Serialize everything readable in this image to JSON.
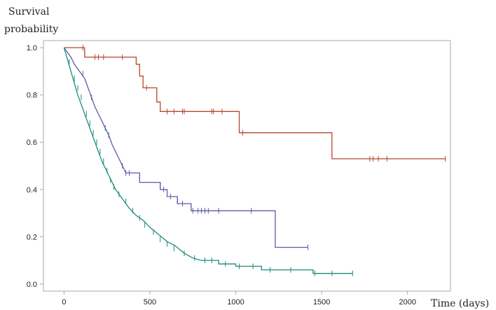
{
  "chart_data": {
    "type": "line",
    "step": true,
    "ylabel": [
      "Survival",
      "probability"
    ],
    "xlabel": "Time (days)",
    "xlim": [
      -120,
      2250
    ],
    "ylim": [
      -0.03,
      1.03
    ],
    "xticks": [
      0,
      500,
      1000,
      1500,
      2000
    ],
    "yticks": [
      0.0,
      0.2,
      0.4,
      0.6,
      0.8,
      1.0
    ],
    "grid": false,
    "legend": "none",
    "series": [
      {
        "color": "#b5472c",
        "points": [
          [
            0,
            1.0
          ],
          [
            120,
            1.0
          ],
          [
            120,
            0.96
          ],
          [
            420,
            0.96
          ],
          [
            420,
            0.93
          ],
          [
            440,
            0.93
          ],
          [
            440,
            0.88
          ],
          [
            460,
            0.88
          ],
          [
            460,
            0.83
          ],
          [
            540,
            0.83
          ],
          [
            540,
            0.77
          ],
          [
            560,
            0.77
          ],
          [
            560,
            0.73
          ],
          [
            1020,
            0.73
          ],
          [
            1020,
            0.64
          ],
          [
            1560,
            0.64
          ],
          [
            1560,
            0.53
          ],
          [
            2220,
            0.53
          ]
        ],
        "censored": [
          [
            110,
            1.0
          ],
          [
            180,
            0.96
          ],
          [
            200,
            0.96
          ],
          [
            230,
            0.96
          ],
          [
            340,
            0.96
          ],
          [
            480,
            0.83
          ],
          [
            600,
            0.73
          ],
          [
            640,
            0.73
          ],
          [
            690,
            0.73
          ],
          [
            700,
            0.73
          ],
          [
            860,
            0.73
          ],
          [
            870,
            0.73
          ],
          [
            920,
            0.73
          ],
          [
            1040,
            0.64
          ],
          [
            1780,
            0.53
          ],
          [
            1800,
            0.53
          ],
          [
            1830,
            0.53
          ],
          [
            1880,
            0.53
          ],
          [
            2220,
            0.53
          ]
        ]
      },
      {
        "color": "#5b5ba8",
        "points": [
          [
            0,
            1.0
          ],
          [
            20,
            0.98
          ],
          [
            40,
            0.96
          ],
          [
            60,
            0.93
          ],
          [
            80,
            0.91
          ],
          [
            100,
            0.89
          ],
          [
            120,
            0.87
          ],
          [
            140,
            0.83
          ],
          [
            160,
            0.79
          ],
          [
            180,
            0.75
          ],
          [
            200,
            0.72
          ],
          [
            220,
            0.69
          ],
          [
            240,
            0.66
          ],
          [
            260,
            0.63
          ],
          [
            280,
            0.59
          ],
          [
            300,
            0.56
          ],
          [
            320,
            0.53
          ],
          [
            340,
            0.5
          ],
          [
            360,
            0.47
          ],
          [
            440,
            0.47
          ],
          [
            440,
            0.43
          ],
          [
            560,
            0.43
          ],
          [
            560,
            0.4
          ],
          [
            600,
            0.4
          ],
          [
            600,
            0.37
          ],
          [
            660,
            0.37
          ],
          [
            660,
            0.34
          ],
          [
            740,
            0.34
          ],
          [
            740,
            0.31
          ],
          [
            1230,
            0.31
          ],
          [
            1230,
            0.155
          ],
          [
            1420,
            0.155
          ]
        ],
        "censored": [
          [
            110,
            0.89
          ],
          [
            160,
            0.79
          ],
          [
            240,
            0.66
          ],
          [
            260,
            0.63
          ],
          [
            340,
            0.5
          ],
          [
            360,
            0.47
          ],
          [
            380,
            0.47
          ],
          [
            560,
            0.42
          ],
          [
            580,
            0.4
          ],
          [
            620,
            0.37
          ],
          [
            660,
            0.35
          ],
          [
            690,
            0.34
          ],
          [
            750,
            0.31
          ],
          [
            780,
            0.31
          ],
          [
            800,
            0.31
          ],
          [
            820,
            0.31
          ],
          [
            840,
            0.31
          ],
          [
            900,
            0.31
          ],
          [
            1090,
            0.31
          ],
          [
            1420,
            0.155
          ]
        ]
      },
      {
        "color": "#1d8a7a",
        "points": [
          [
            0,
            1.0
          ],
          [
            20,
            0.95
          ],
          [
            40,
            0.9
          ],
          [
            60,
            0.85
          ],
          [
            80,
            0.8
          ],
          [
            100,
            0.76
          ],
          [
            120,
            0.72
          ],
          [
            140,
            0.68
          ],
          [
            160,
            0.64
          ],
          [
            180,
            0.6
          ],
          [
            200,
            0.56
          ],
          [
            220,
            0.52
          ],
          [
            240,
            0.49
          ],
          [
            260,
            0.46
          ],
          [
            280,
            0.43
          ],
          [
            300,
            0.4
          ],
          [
            340,
            0.36
          ],
          [
            380,
            0.32
          ],
          [
            420,
            0.29
          ],
          [
            460,
            0.27
          ],
          [
            500,
            0.24
          ],
          [
            550,
            0.21
          ],
          [
            600,
            0.18
          ],
          [
            650,
            0.16
          ],
          [
            700,
            0.13
          ],
          [
            750,
            0.11
          ],
          [
            800,
            0.1
          ],
          [
            900,
            0.1
          ],
          [
            900,
            0.085
          ],
          [
            1000,
            0.085
          ],
          [
            1000,
            0.075
          ],
          [
            1150,
            0.075
          ],
          [
            1150,
            0.06
          ],
          [
            1450,
            0.06
          ],
          [
            1450,
            0.045
          ],
          [
            1680,
            0.045
          ]
        ],
        "censored": [
          [
            30,
            0.94
          ],
          [
            60,
            0.87
          ],
          [
            80,
            0.83
          ],
          [
            100,
            0.79
          ],
          [
            130,
            0.72
          ],
          [
            150,
            0.68
          ],
          [
            170,
            0.64
          ],
          [
            190,
            0.6
          ],
          [
            210,
            0.56
          ],
          [
            230,
            0.52
          ],
          [
            250,
            0.48
          ],
          [
            270,
            0.44
          ],
          [
            290,
            0.41
          ],
          [
            320,
            0.38
          ],
          [
            360,
            0.35
          ],
          [
            400,
            0.31
          ],
          [
            440,
            0.28
          ],
          [
            470,
            0.25
          ],
          [
            520,
            0.22
          ],
          [
            560,
            0.19
          ],
          [
            600,
            0.17
          ],
          [
            640,
            0.15
          ],
          [
            700,
            0.13
          ],
          [
            760,
            0.11
          ],
          [
            820,
            0.1
          ],
          [
            860,
            0.1
          ],
          [
            940,
            0.085
          ],
          [
            1020,
            0.075
          ],
          [
            1100,
            0.075
          ],
          [
            1200,
            0.06
          ],
          [
            1320,
            0.06
          ],
          [
            1460,
            0.045
          ],
          [
            1560,
            0.045
          ],
          [
            1680,
            0.045
          ]
        ]
      }
    ]
  }
}
